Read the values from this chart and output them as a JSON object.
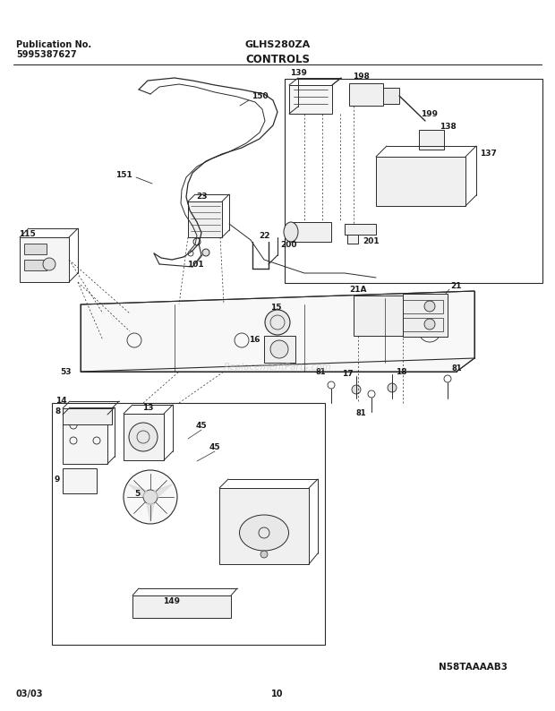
{
  "title": "CONTROLS",
  "pub_no_label": "Publication No.",
  "pub_no": "5995387627",
  "model": "GLHS280ZA",
  "diagram_code": "N58TAAAAB3",
  "date": "03/03",
  "page": "10",
  "bg_color": "#ffffff",
  "line_color": "#2a2a2a",
  "text_color": "#1a1a1a",
  "watermark": "ReplacementParts.com",
  "font_size_label": 6.5,
  "font_size_header": 8,
  "font_size_footer": 7
}
